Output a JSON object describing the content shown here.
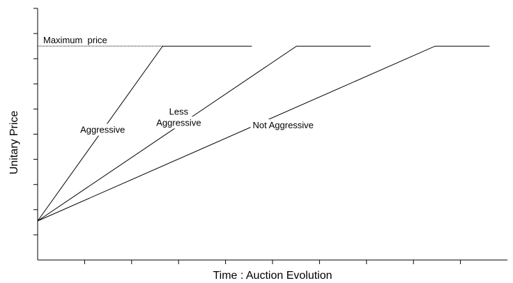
{
  "chart_data": {
    "type": "line",
    "xlabel": "Time : Auction Evolution",
    "ylabel": "Unitary Price",
    "grid": false,
    "legend": "none",
    "axis_color": "#000000",
    "max_price": {
      "label": "Maximum  price",
      "style": "dotted"
    },
    "series": [
      {
        "name": "Aggressive",
        "label_lines": [
          "Aggressive"
        ],
        "points": [
          [
            0,
            0.155
          ],
          [
            0.266,
            0.85
          ],
          [
            0.456,
            0.85
          ]
        ]
      },
      {
        "name": "Less Aggressive",
        "label_lines": [
          "Less",
          "Aggressive"
        ],
        "points": [
          [
            0,
            0.155
          ],
          [
            0.551,
            0.85
          ],
          [
            0.709,
            0.85
          ]
        ]
      },
      {
        "name": "Not Aggressive",
        "label_lines": [
          "Not Aggressive"
        ],
        "points": [
          [
            0,
            0.155
          ],
          [
            0.846,
            0.85
          ],
          [
            0.962,
            0.85
          ]
        ]
      }
    ],
    "xlim": [
      0,
      1
    ],
    "ylim": [
      0,
      1
    ]
  }
}
